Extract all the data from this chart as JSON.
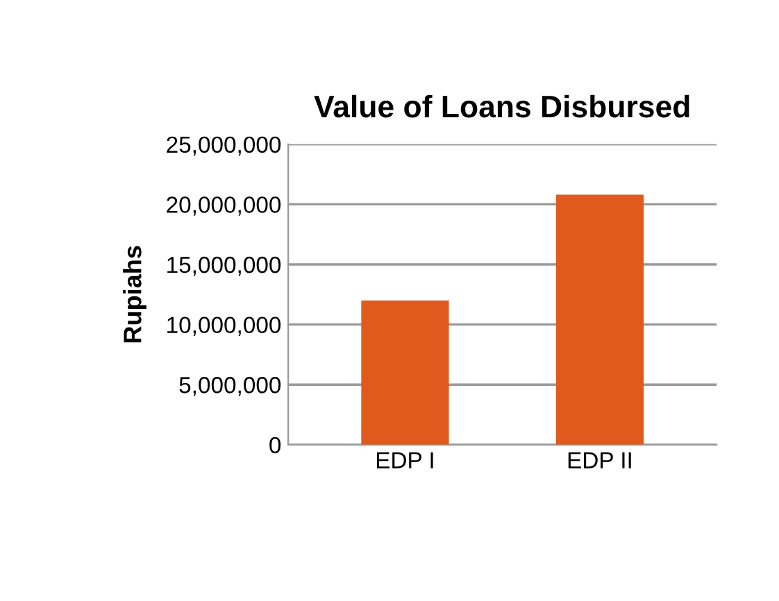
{
  "chart_data": {
    "type": "bar",
    "title": "Value of Loans Disbursed",
    "ylabel": "Rupiahs",
    "categories": [
      "EDP I",
      "EDP II"
    ],
    "values": [
      12000000,
      20800000
    ],
    "color": "#e05a1e",
    "ylim": [
      0,
      25000000
    ],
    "yticks": [
      0,
      {
        "value": 5000000,
        "label": "5,000,000"
      },
      {
        "value": 10000000,
        "label": "10,000,000"
      },
      {
        "value": 15000000,
        "label": "15,000,000"
      },
      {
        "value": 20000000,
        "label": "20,000,000"
      },
      {
        "value": 25000000,
        "label": "25,000,000"
      }
    ],
    "grid": "y"
  }
}
